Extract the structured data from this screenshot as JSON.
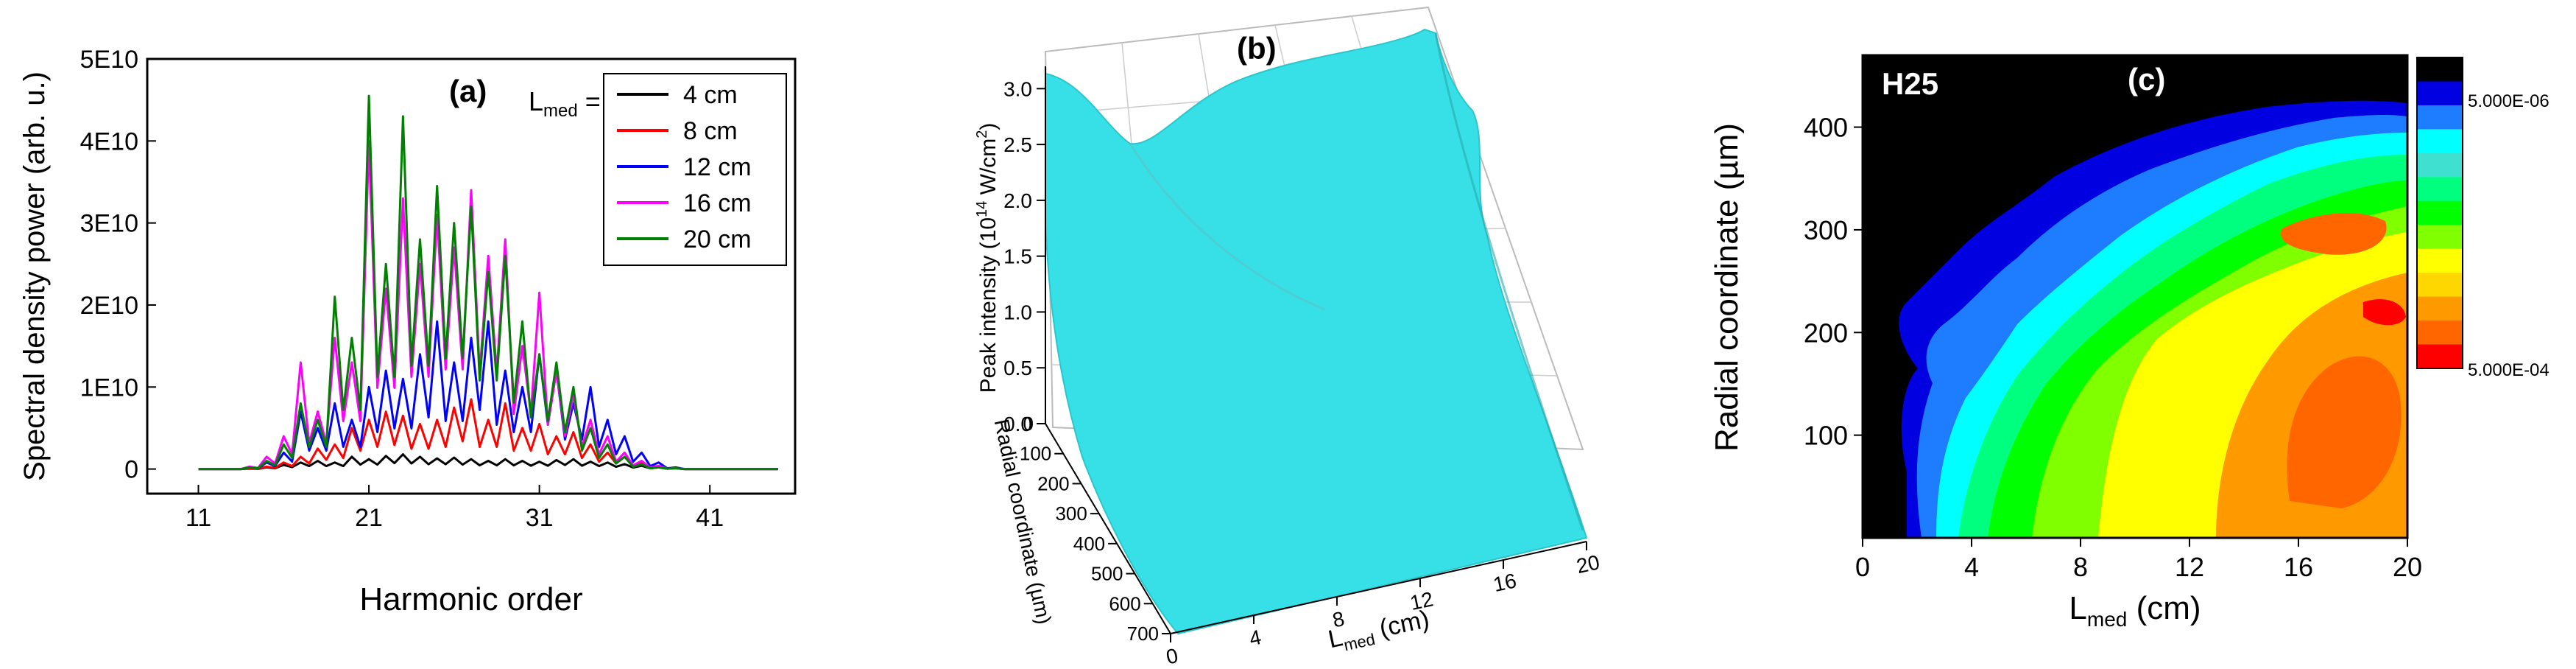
{
  "colors": {
    "black": "#000000",
    "red": "#ff0000",
    "blue": "#0000ff",
    "magenta": "#ff00ff",
    "green": "#008000",
    "surface": "#36e0e6"
  },
  "chart_data": [
    {
      "type": "line",
      "panel_label": "(a)",
      "xlabel": "Harmonic order",
      "ylabel": "Spectral density power (arb. u.)",
      "xlim": [
        8,
        46
      ],
      "ylim": [
        -3000000000.0,
        50000000000.0
      ],
      "xticks": [
        11,
        21,
        31,
        41
      ],
      "xtick_labels": [
        "11",
        "21",
        "31",
        "41"
      ],
      "yticks": [
        0,
        10000000000.0,
        20000000000.0,
        30000000000.0,
        40000000000.0,
        50000000000.0
      ],
      "ytick_labels": [
        "0",
        "1E10",
        "2E10",
        "3E10",
        "4E10",
        "5E10"
      ],
      "legend_title_main": "L",
      "legend_title_sub": "med",
      "legend_title_suffix": " =",
      "legend_position": "top-right",
      "x": [
        11,
        12,
        13,
        14,
        15,
        16,
        17,
        18,
        19,
        20,
        21,
        22,
        23,
        24,
        25,
        26,
        27,
        28,
        29,
        30,
        31,
        32,
        33,
        34,
        35,
        36,
        37,
        38,
        39,
        40,
        41,
        42,
        43,
        44,
        45
      ],
      "series": [
        {
          "name": "4 cm",
          "color": "#000000",
          "values": [
            0,
            0,
            0,
            50000000.0,
            200000000.0,
            500000000.0,
            800000000.0,
            1000000000.0,
            800000000.0,
            1500000000.0,
            1200000000.0,
            1600000000.0,
            1800000000.0,
            1500000000.0,
            1300000000.0,
            1400000000.0,
            1200000000.0,
            1000000000.0,
            1200000000.0,
            1000000000.0,
            900000000.0,
            1100000000.0,
            1200000000.0,
            900000000.0,
            800000000.0,
            600000000.0,
            400000000.0,
            200000000.0,
            100000000.0,
            0,
            0,
            0,
            0,
            0,
            0
          ]
        },
        {
          "name": "8 cm",
          "color": "#ff0000",
          "values": [
            0,
            0,
            0,
            100000000.0,
            300000000.0,
            800000000.0,
            1500000000.0,
            2500000000.0,
            3000000000.0,
            5000000000.0,
            6000000000.0,
            7000000000.0,
            6500000000.0,
            5500000000.0,
            6000000000.0,
            7500000000.0,
            8500000000.0,
            6000000000.0,
            8000000000.0,
            5000000000.0,
            5500000000.0,
            4000000000.0,
            4500000000.0,
            3000000000.0,
            2000000000.0,
            1500000000.0,
            800000000.0,
            300000000.0,
            100000000.0,
            0,
            0,
            0,
            0,
            0,
            0
          ]
        },
        {
          "name": "12 cm",
          "color": "#0000ff",
          "values": [
            0,
            0,
            0,
            200000000.0,
            800000000.0,
            2000000000.0,
            7000000000.0,
            5000000000.0,
            8000000000.0,
            6000000000.0,
            10000000000.0,
            12000000000.0,
            11000000000.0,
            14000000000.0,
            18000000000.0,
            13000000000.0,
            16000000000.0,
            18000000000.0,
            12000000000.0,
            10000000000.0,
            14000000000.0,
            12000000000.0,
            8000000000.0,
            10000000000.0,
            6000000000.0,
            4000000000.0,
            2000000000.0,
            800000000.0,
            200000000.0,
            0,
            0,
            0,
            0,
            0,
            0
          ]
        },
        {
          "name": "16 cm",
          "color": "#ff00ff",
          "values": [
            0,
            0,
            0,
            300000000.0,
            1500000000.0,
            4000000000.0,
            13000000000.0,
            7000000000.0,
            16000000000.0,
            13000000000.0,
            40000000000.0,
            22000000000.0,
            33000000000.0,
            25000000000.0,
            31000000000.0,
            27000000000.0,
            34000000000.0,
            26000000000.0,
            28000000000.0,
            15000000000.0,
            21500000000.0,
            12000000000.0,
            9000000000.0,
            6000000000.0,
            4000000000.0,
            2000000000.0,
            1000000000.0,
            400000000.0,
            100000000.0,
            0,
            0,
            0,
            0,
            0,
            0
          ]
        },
        {
          "name": "20 cm",
          "color": "#008000",
          "values": [
            0,
            0,
            0,
            200000000.0,
            1000000000.0,
            3000000000.0,
            8000000000.0,
            6000000000.0,
            21000000000.0,
            16000000000.0,
            45500000000.0,
            25000000000.0,
            43000000000.0,
            28000000000.0,
            34500000000.0,
            30000000000.0,
            32000000000.0,
            24000000000.0,
            26000000000.0,
            18000000000.0,
            14000000000.0,
            13000000000.0,
            10000000000.0,
            5000000000.0,
            3000000000.0,
            1500000000.0,
            600000000.0,
            200000000.0,
            100000000.0,
            0,
            0,
            0,
            0,
            0,
            0
          ]
        }
      ]
    },
    {
      "type": "surface3d",
      "panel_label": "(b)",
      "zlabel_main": "Peak intensity (10",
      "zlabel_sup": "14",
      "zlabel_unit": " W/cm",
      "zlabel_sup2": "2",
      "zlabel_close": ")",
      "ylabel": "Radial coordinate (µm)",
      "xlabel_main": "L",
      "xlabel_sub": "med",
      "xlabel_suffix": " (cm)",
      "zticks": [
        "0.0",
        "0.5",
        "1.0",
        "1.5",
        "2.0",
        "2.5",
        "3.0"
      ],
      "yticks": [
        "0",
        "100",
        "200",
        "300",
        "400",
        "500",
        "600",
        "700"
      ],
      "xticks": [
        "0",
        "4",
        "8",
        "12",
        "16",
        "20"
      ],
      "zlim": [
        0,
        3.2
      ],
      "ylim": [
        0,
        700
      ],
      "xlim": [
        0,
        20
      ]
    },
    {
      "type": "heatmap",
      "panel_label": "(c)",
      "corner_label": "H25",
      "ylabel": "Radial coordinate (µm)",
      "xlabel_main": "L",
      "xlabel_sub": "med",
      "xlabel_suffix": " (cm)",
      "xlim": [
        0,
        20
      ],
      "ylim": [
        0,
        470
      ],
      "xticks": [
        "0",
        "4",
        "8",
        "12",
        "16",
        "20"
      ],
      "yticks": [
        "100",
        "200",
        "300",
        "400"
      ],
      "colorbar_top": "5.000E-06",
      "colorbar_bottom": "5.000E-04",
      "colorbar_colors": [
        "#000000",
        "#0000e0",
        "#1e7cff",
        "#00ffff",
        "#40e0d0",
        "#00ff7f",
        "#00ff00",
        "#7fff00",
        "#ffff00",
        "#ffd700",
        "#ff9900",
        "#ff6600",
        "#ff0000"
      ]
    }
  ]
}
